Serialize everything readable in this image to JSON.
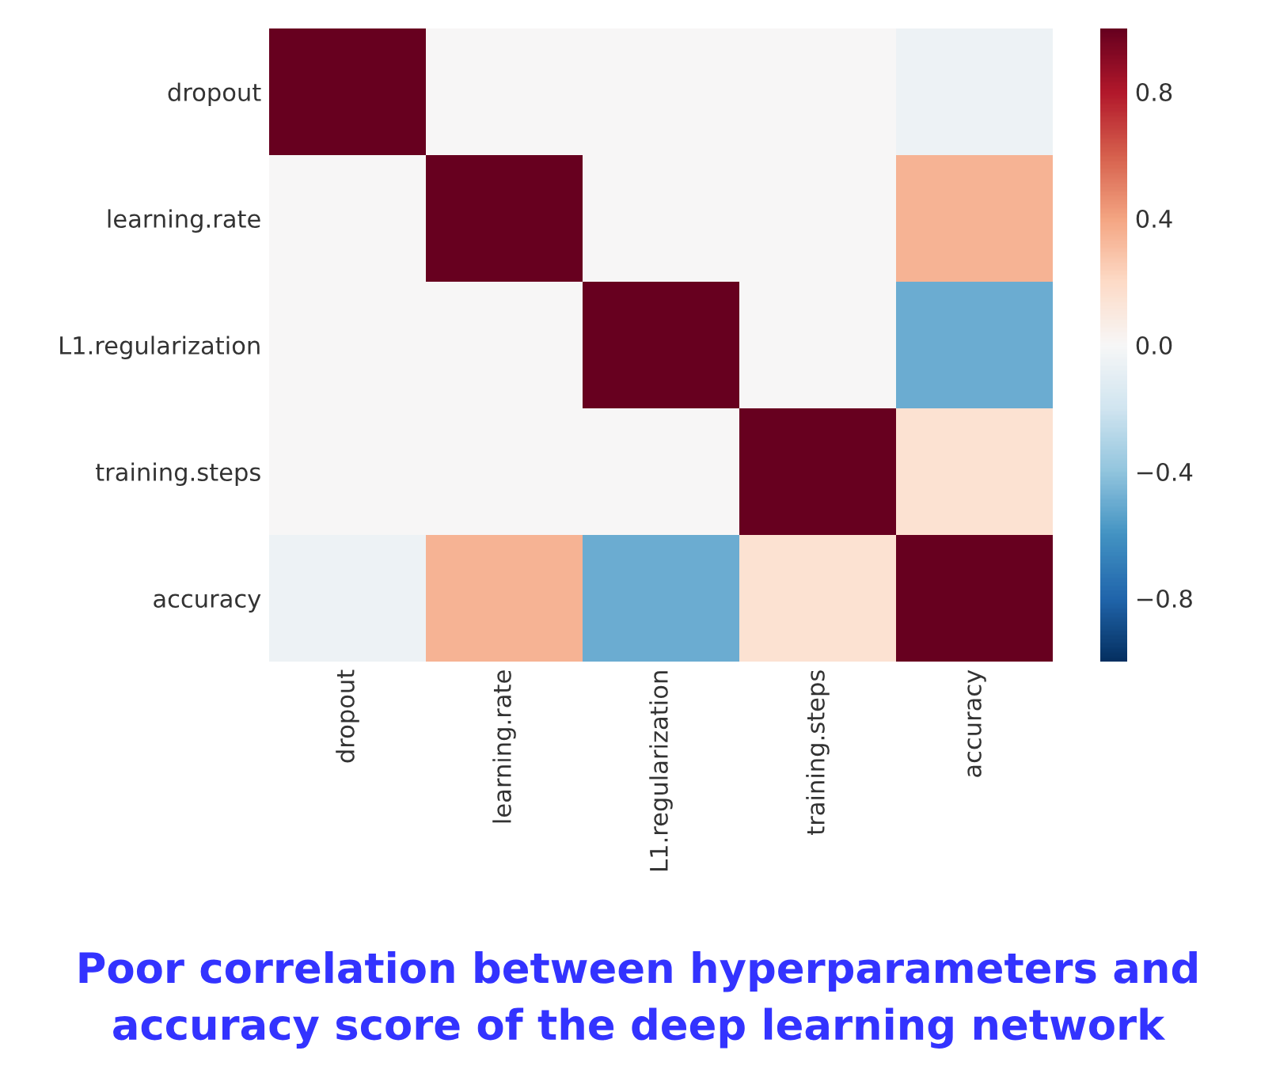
{
  "chart_data": {
    "type": "heatmap",
    "title": "Poor correlation between hyperparameters and\naccuracy score of the deep learning network",
    "categories": [
      "dropout",
      "learning.rate",
      "L1.regularization",
      "training.steps",
      "accuracy"
    ],
    "y_categories": [
      "dropout",
      "learning.rate",
      "L1.regularization",
      "training.steps",
      "accuracy"
    ],
    "cells": [
      [
        1.0,
        0.0,
        0.0,
        0.0,
        -0.05
      ],
      [
        0.0,
        1.0,
        0.0,
        0.0,
        0.35
      ],
      [
        0.0,
        0.0,
        1.0,
        0.0,
        -0.5
      ],
      [
        0.0,
        0.0,
        0.0,
        1.0,
        0.15
      ],
      [
        -0.05,
        0.35,
        -0.5,
        0.15,
        1.0
      ]
    ],
    "clim": [
      -1,
      1
    ],
    "cticks": [
      0.8,
      0.4,
      {
        "value": 0,
        "label": "0.0"
      },
      {
        "value": -0.4,
        "label": "−0.4"
      },
      {
        "value": -0.8,
        "label": "−0.8"
      }
    ]
  }
}
